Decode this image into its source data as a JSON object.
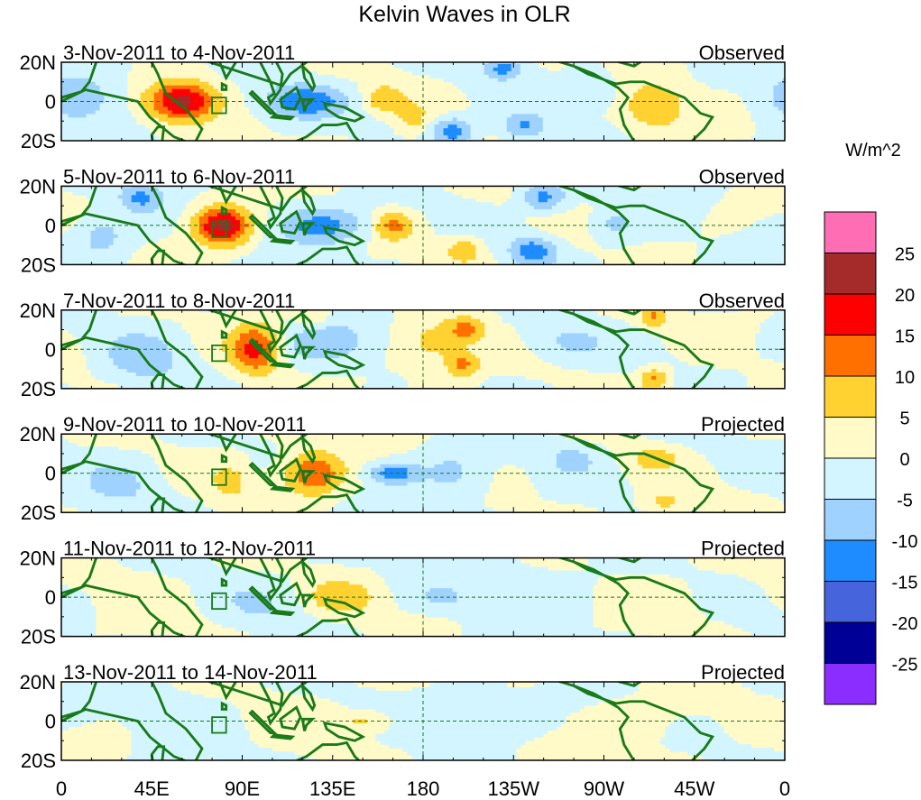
{
  "title": "Kelvin Waves in OLR",
  "colorbar": {
    "units": "W/m^2",
    "levels": [
      {
        "label": "",
        "color": "#ff6eb4"
      },
      {
        "label": "25",
        "color": "#a52a2a"
      },
      {
        "label": "20",
        "color": "#ff0000"
      },
      {
        "label": "15",
        "color": "#ff7000"
      },
      {
        "label": "10",
        "color": "#ffd232"
      },
      {
        "label": "5",
        "color": "#fffac8"
      },
      {
        "label": "0",
        "color": "#d2f5ff"
      },
      {
        "label": "-5",
        "color": "#a0d2ff"
      },
      {
        "label": "-10",
        "color": "#1e8cff"
      },
      {
        "label": "-15",
        "color": "#4664dc"
      },
      {
        "label": "-20",
        "color": "#000096"
      },
      {
        "label": "-25",
        "color": "#8c2dff"
      }
    ]
  },
  "chart_data": {
    "type": "heatmap",
    "xlabels": [
      "0",
      "45E",
      "90E",
      "135E",
      "180",
      "135W",
      "90W",
      "45W",
      "0"
    ],
    "ylabels": [
      "20N",
      "0",
      "20S"
    ],
    "panels": [
      {
        "date": "3-Nov-2011 to 4-Nov-2011",
        "status": "Observed",
        "anomalies": [
          {
            "lon": 60,
            "lat": 0,
            "val": 22,
            "slon": 12,
            "slat": 7
          },
          {
            "lon": 120,
            "lat": 0,
            "val": -14,
            "slon": 14,
            "slat": 6
          },
          {
            "lon": 160,
            "lat": 1,
            "val": 9,
            "slon": 7,
            "slat": 5
          },
          {
            "lon": 195,
            "lat": -15,
            "val": -13,
            "slon": 8,
            "slat": 5
          },
          {
            "lon": 230,
            "lat": -13,
            "val": -11,
            "slon": 8,
            "slat": 5
          },
          {
            "lon": 220,
            "lat": 17,
            "val": -12,
            "slon": 7,
            "slat": 4
          },
          {
            "lon": 295,
            "lat": -2,
            "val": 9,
            "slon": 12,
            "slat": 9
          },
          {
            "lon": 10,
            "lat": 3,
            "val": -8,
            "slon": 15,
            "slat": 10
          },
          {
            "lon": 265,
            "lat": 5,
            "val": -6,
            "slon": 10,
            "slat": 6
          },
          {
            "lon": 175,
            "lat": -10,
            "val": 6,
            "slon": 6,
            "slat": 6
          }
        ]
      },
      {
        "date": "5-Nov-2011 to 6-Nov-2011",
        "status": "Observed",
        "anomalies": [
          {
            "lon": 80,
            "lat": 0,
            "val": 22,
            "slon": 10,
            "slat": 7
          },
          {
            "lon": 130,
            "lat": 0,
            "val": -12,
            "slon": 16,
            "slat": 7
          },
          {
            "lon": 165,
            "lat": 0,
            "val": 11,
            "slon": 7,
            "slat": 5
          },
          {
            "lon": 40,
            "lat": 14,
            "val": -11,
            "slon": 8,
            "slat": 5
          },
          {
            "lon": 235,
            "lat": -13,
            "val": -13,
            "slon": 8,
            "slat": 5
          },
          {
            "lon": 240,
            "lat": 14,
            "val": -12,
            "slon": 8,
            "slat": 5
          },
          {
            "lon": 20,
            "lat": -5,
            "val": -8,
            "slon": 10,
            "slat": 8
          },
          {
            "lon": 275,
            "lat": 0,
            "val": -6,
            "slon": 8,
            "slat": 6
          },
          {
            "lon": 200,
            "lat": -12,
            "val": 8,
            "slon": 7,
            "slat": 5
          }
        ]
      },
      {
        "date": "7-Nov-2011 to 8-Nov-2011",
        "status": "Observed",
        "anomalies": [
          {
            "lon": 97,
            "lat": 0,
            "val": 17,
            "slon": 9,
            "slat": 9
          },
          {
            "lon": 130,
            "lat": 3,
            "val": -9,
            "slon": 16,
            "slat": 8
          },
          {
            "lon": 185,
            "lat": 2,
            "val": 7,
            "slon": 12,
            "slat": 9
          },
          {
            "lon": 202,
            "lat": 10,
            "val": 11,
            "slon": 6,
            "slat": 4
          },
          {
            "lon": 200,
            "lat": -8,
            "val": 11,
            "slon": 6,
            "slat": 5
          },
          {
            "lon": 125,
            "lat": 16,
            "val": 7,
            "slon": 6,
            "slat": 4
          },
          {
            "lon": 295,
            "lat": -15,
            "val": 11,
            "slon": 5,
            "slat": 4
          },
          {
            "lon": 295,
            "lat": 17,
            "val": 10,
            "slon": 5,
            "slat": 4
          },
          {
            "lon": 40,
            "lat": -5,
            "val": -7,
            "slon": 14,
            "slat": 10
          },
          {
            "lon": 250,
            "lat": 3,
            "val": -6,
            "slon": 14,
            "slat": 7
          }
        ]
      },
      {
        "date": "9-Nov-2011 to 10-Nov-2011",
        "status": "Projected",
        "anomalies": [
          {
            "lon": 125,
            "lat": 0,
            "val": 15,
            "slon": 11,
            "slat": 8
          },
          {
            "lon": 165,
            "lat": 0,
            "val": -13,
            "slon": 9,
            "slat": 4
          },
          {
            "lon": 85,
            "lat": -3,
            "val": 6,
            "slon": 8,
            "slat": 8
          },
          {
            "lon": 195,
            "lat": 0,
            "val": -6,
            "slon": 12,
            "slat": 10
          },
          {
            "lon": 255,
            "lat": 8,
            "val": -6,
            "slon": 10,
            "slat": 6
          },
          {
            "lon": 295,
            "lat": 8,
            "val": 7,
            "slon": 8,
            "slat": 4
          },
          {
            "lon": 300,
            "lat": -15,
            "val": 7,
            "slon": 8,
            "slat": 4
          },
          {
            "lon": 30,
            "lat": -5,
            "val": -5,
            "slon": 15,
            "slat": 10
          }
        ]
      },
      {
        "date": "11-Nov-2011 to 12-Nov-2011",
        "status": "Projected",
        "anomalies": [
          {
            "lon": 140,
            "lat": 0,
            "val": 8,
            "slon": 12,
            "slat": 6
          },
          {
            "lon": 190,
            "lat": 0,
            "val": -6,
            "slon": 8,
            "slat": 4
          },
          {
            "lon": 100,
            "lat": -3,
            "val": -4,
            "slon": 15,
            "slat": 9
          },
          {
            "lon": 230,
            "lat": 4,
            "val": -3,
            "slon": 25,
            "slat": 10
          },
          {
            "lon": 40,
            "lat": 0,
            "val": 2,
            "slon": 15,
            "slat": 10
          },
          {
            "lon": 300,
            "lat": 0,
            "val": 2,
            "slon": 20,
            "slat": 10
          }
        ]
      },
      {
        "date": "13-Nov-2011 to 14-Nov-2011",
        "status": "Projected",
        "anomalies": [
          {
            "lon": 152,
            "lat": 0,
            "val": 7,
            "slon": 10,
            "slat": 4
          },
          {
            "lon": 120,
            "lat": 0,
            "val": 2,
            "slon": 20,
            "slat": 10
          },
          {
            "lon": 200,
            "lat": 3,
            "val": -3,
            "slon": 25,
            "slat": 9
          },
          {
            "lon": 60,
            "lat": 0,
            "val": -3,
            "slon": 18,
            "slat": 10
          },
          {
            "lon": 290,
            "lat": 0,
            "val": 2,
            "slon": 25,
            "slat": 10
          }
        ]
      }
    ]
  }
}
